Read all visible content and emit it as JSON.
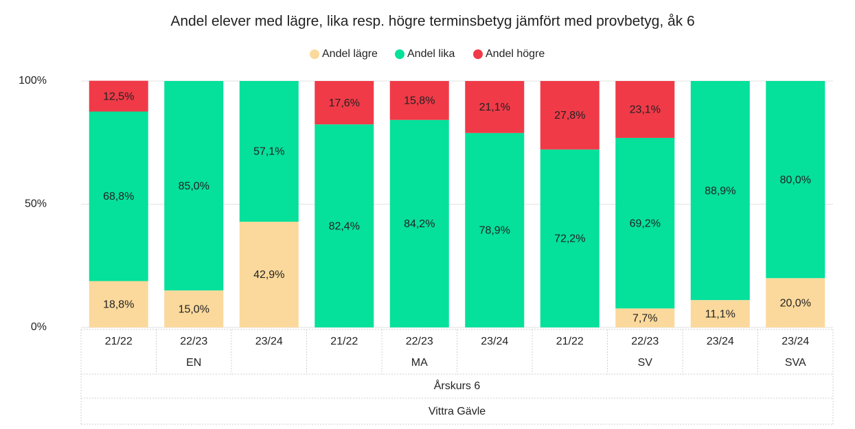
{
  "chart_data": {
    "type": "stacked_bar",
    "title": "Andel elever med lägre, lika resp. högre terminsbetyg jämfört med provbetyg, åk 6",
    "groups": [
      {
        "name": "EN",
        "categories": [
          "21/22",
          "22/23",
          "23/24"
        ]
      },
      {
        "name": "MA",
        "categories": [
          "21/22",
          "22/23",
          "23/24"
        ]
      },
      {
        "name": "SV",
        "categories": [
          "21/22",
          "22/23",
          "23/24"
        ]
      },
      {
        "name": "SVA",
        "categories": [
          "23/24"
        ]
      }
    ],
    "level3": "Årskurs 6",
    "level4": "Vittra Gävle",
    "series": [
      {
        "name": "Andel lägre",
        "color": "#fbd99c",
        "values": [
          18.8,
          15.0,
          42.9,
          null,
          null,
          null,
          null,
          7.7,
          11.1,
          20.0
        ],
        "value_labels": [
          "18,8%",
          "15,0%",
          "42,9%",
          null,
          null,
          null,
          null,
          "7,7%",
          "11,1%",
          "20,0%"
        ]
      },
      {
        "name": "Andel lika",
        "color": "#05e09b",
        "values": [
          68.8,
          85.0,
          57.1,
          82.4,
          84.2,
          78.9,
          72.2,
          69.2,
          88.9,
          80.0
        ],
        "value_labels": [
          "68,8%",
          "85,0%",
          "57,1%",
          "82,4%",
          "84,2%",
          "78,9%",
          "72,2%",
          "69,2%",
          "88,9%",
          "80,0%"
        ]
      },
      {
        "name": "Andel högre",
        "color": "#f03a48",
        "values": [
          12.5,
          null,
          null,
          17.6,
          15.8,
          21.1,
          27.8,
          23.1,
          null,
          null
        ],
        "value_labels": [
          "12,5%",
          null,
          null,
          "17,6%",
          "15,8%",
          "21,1%",
          "27,8%",
          "23,1%",
          null,
          null
        ]
      }
    ],
    "ylim": [
      0,
      100
    ],
    "yticks": [
      {
        "value": 0,
        "label": "0%"
      },
      {
        "value": 50,
        "label": "50%"
      },
      {
        "value": 100,
        "label": "100%"
      }
    ],
    "grid": true,
    "legend": "top"
  }
}
